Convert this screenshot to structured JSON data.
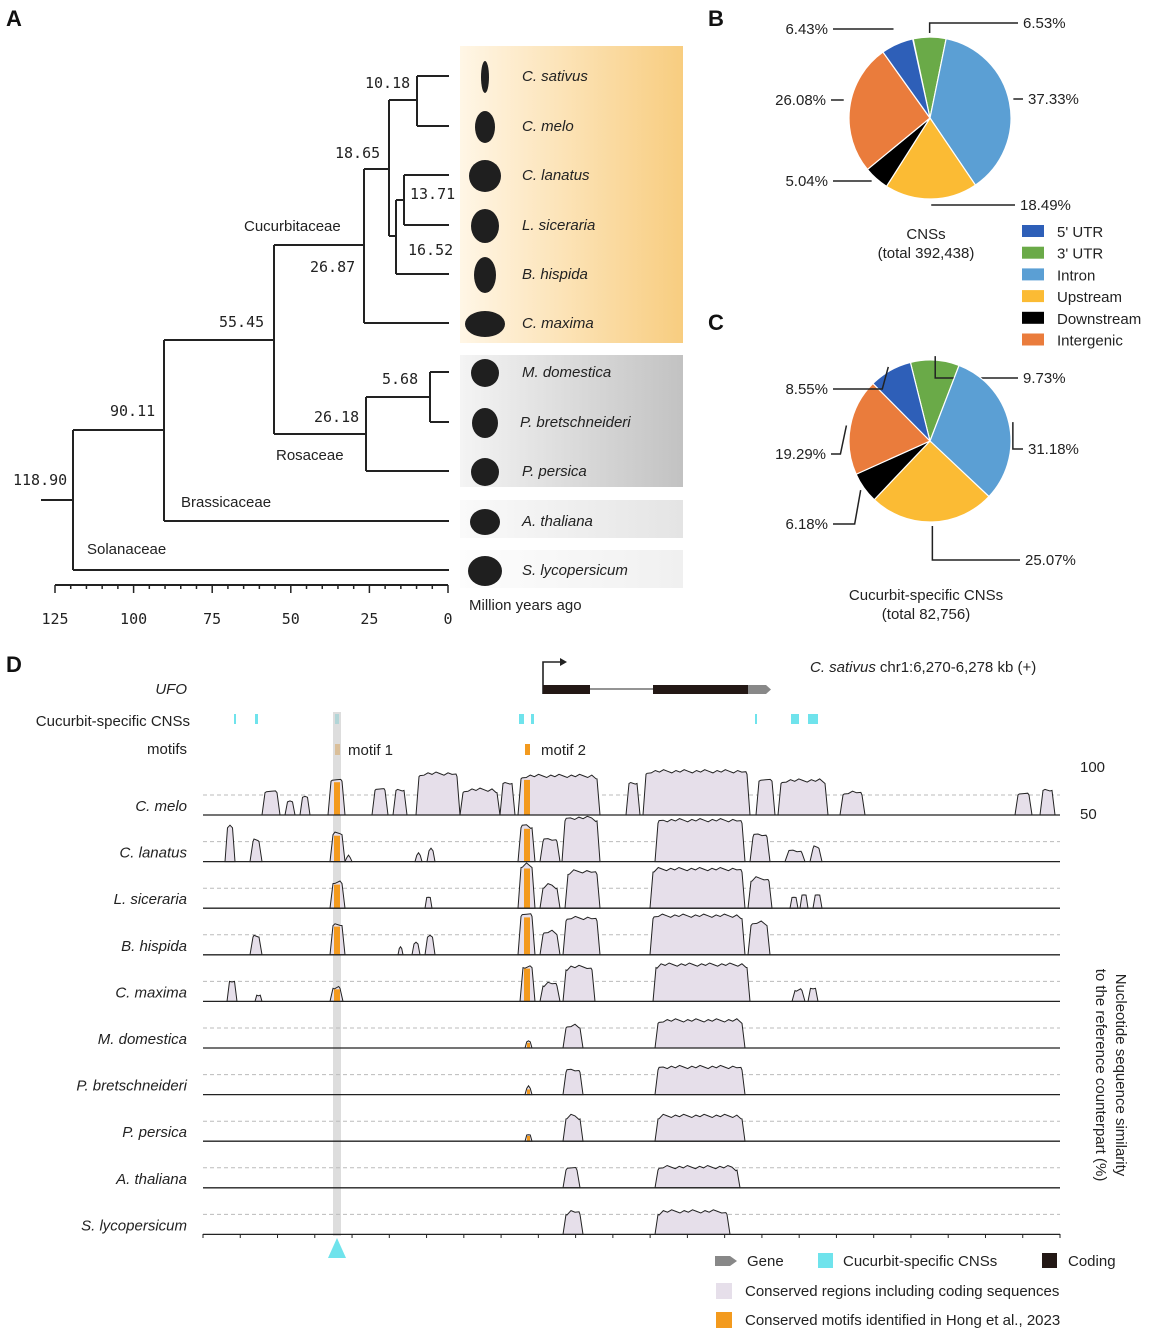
{
  "panels": {
    "a": "A",
    "b": "B",
    "c": "C",
    "d": "D"
  },
  "tree": {
    "species": [
      "C. sativus",
      "C. melo",
      "C. lanatus",
      "L. siceraria",
      "B. hispida",
      "C. maxima",
      "M. domestica",
      "P. bretschneideri",
      "P. persica",
      "A. thaliana",
      "S. lycopersicum"
    ],
    "node_ages": [
      "10.18",
      "18.65",
      "13.71",
      "16.52",
      "26.87",
      "55.45",
      "5.68",
      "26.18",
      "90.11",
      "118.90"
    ],
    "clades": [
      "Cucurbitaceae",
      "Rosaceae",
      "Brassicaceae",
      "Solanaceae"
    ],
    "axis_ticks": [
      "125",
      "100",
      "75",
      "50",
      "25",
      "0"
    ],
    "axis_label": "Million years ago",
    "colors": {
      "cucurbit_box": "#f8d08a",
      "rosaceae_box": "#c8c8c8",
      "other_box": "#ececec"
    }
  },
  "chart_data": [
    {
      "type": "pie",
      "title": "CNSs",
      "subtitle": "(total 392,438)",
      "categories": [
        "3' UTR",
        "Intron",
        "Upstream",
        "Downstream",
        "Intergenic",
        "5' UTR"
      ],
      "values": [
        6.53,
        37.33,
        18.49,
        5.04,
        26.08,
        6.43
      ],
      "labels": [
        "6.53%",
        "37.33%",
        "18.49%",
        "5.04%",
        "26.08%",
        "6.43%"
      ]
    },
    {
      "type": "pie",
      "title": "Cucurbit-specific CNSs",
      "subtitle": "(total 82,756)",
      "categories": [
        "3' UTR",
        "Intron",
        "Upstream",
        "Downstream",
        "Intergenic",
        "5' UTR"
      ],
      "values": [
        9.73,
        31.18,
        25.07,
        6.18,
        19.29,
        8.55
      ],
      "labels": [
        "9.73%",
        "31.18%",
        "25.07%",
        "6.18%",
        "19.29%",
        "8.55%"
      ]
    }
  ],
  "legend": [
    {
      "label": "5' UTR",
      "color": "#2e5fb8"
    },
    {
      "label": "3' UTR",
      "color": "#6aaa48"
    },
    {
      "label": "Intron",
      "color": "#5b9fd4"
    },
    {
      "label": "Upstream",
      "color": "#fbbb34"
    },
    {
      "label": "Downstream",
      "color": "#000000"
    },
    {
      "label": "Intergenic",
      "color": "#ea7c3c"
    }
  ],
  "slice_colors": {
    "3' UTR": "#6aaa48",
    "Intron": "#5b9fd4",
    "Upstream": "#fbbb34",
    "Downstream": "#000000",
    "Intergenic": "#ea7c3c",
    "5' UTR": "#2e5fb8"
  },
  "track": {
    "gene_label": "UFO",
    "region_species": "C. sativus",
    "region": "chr1:6,270-6,278 kb (+)",
    "cns_label": "Cucurbit-specific CNSs",
    "motifs_label": "motifs",
    "motif1": "motif 1",
    "motif2": "motif 2",
    "y_top": "100",
    "y_bottom": "50",
    "ylabel_line1": "Nucleotide sequence similarity",
    "ylabel_line2": "to the reference counterpart (%)",
    "species": [
      "C. melo",
      "C. lanatus",
      "L. siceraria",
      "B. hispida",
      "C. maxima",
      "M. domestica",
      "P. bretschneideri",
      "P. persica",
      "A. thaliana",
      "S. lycopersicum"
    ],
    "colors": {
      "conserved": "#e6dfea",
      "motif": "#f39a1e",
      "cns": "#6fe3ec",
      "coding": "#231815",
      "gene": "#888888"
    }
  },
  "track_legend": {
    "gene": "Gene",
    "cns": "Cucurbit-specific CNSs",
    "coding": "Coding",
    "conserved": "Conserved regions including coding sequences",
    "motifs": "Conserved motifs identified in Hong et al., 2023"
  }
}
